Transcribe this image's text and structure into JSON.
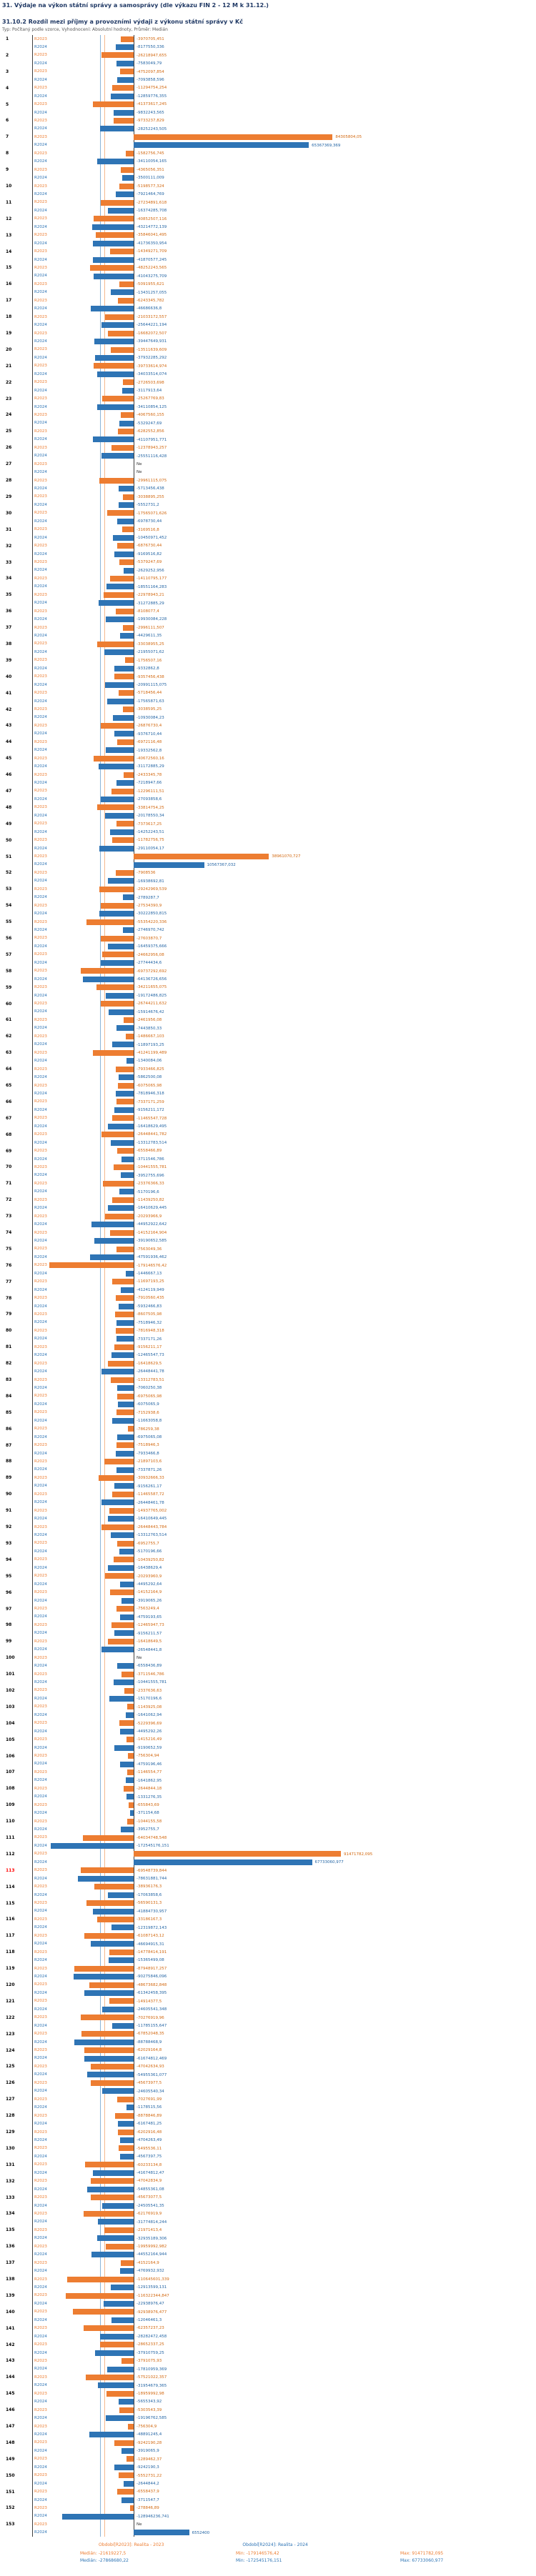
{
  "header": {
    "title": "31. Výdaje na výkon státní správy a samosprávy (dle výkazu FIN 2 - 12 M k 31.12.)",
    "subtitle": "31.10.2 Rozdíl mezi příjmy a provozními výdaji z výkonu státní správy v Kč",
    "meta": "Typ: Počítaný podle vzorce, Vyhodnocení: Absolutní hodnoty, Průměr: Medián"
  },
  "colors": {
    "r2023": "#ED7D31",
    "r2024": "#2E74B5",
    "r2023_text": "#D26911",
    "r2024_text": "#2465A4",
    "axis": "#404040",
    "no_value": "#333333",
    "highlight_row": "#FF0000"
  },
  "series_labels": {
    "r2023": "R2023",
    "r2024": "R2024"
  },
  "no_value_label": "Ne",
  "footer": {
    "legend": [
      {
        "label": "Období[R2023]: Realita - 2023",
        "series": "r2023"
      },
      {
        "label": "Období[R2024]: Realita - 2024",
        "series": "r2024"
      }
    ],
    "stats": [
      {
        "series": "r2023",
        "median": "Medián: -21619227,5",
        "min": "Min: -179146576,42",
        "max": "Max: 91471782,095"
      },
      {
        "series": "r2024",
        "median": "Medián: -27868680,22",
        "min": "Min: -172545176,151",
        "max": "Max: 67733060,977"
      }
    ]
  },
  "chart_data": {
    "type": "bar",
    "orientation": "horizontal",
    "unit": "Kč",
    "title": "31.10.2 Rozdíl mezi příjmy a provozními výdaji z výkonu státní správy v Kč",
    "legend_position": "bottom",
    "axis": {
      "min": -179146576.42,
      "max": 91471782.095,
      "zero_line": true
    },
    "medians": {
      "r2023": "-21619227,5",
      "r2024": "-27868680,22"
    },
    "highlighted_rows": [
      113
    ],
    "rows": [
      {
        "n": 1,
        "r2023": "-3970705,451",
        "r2024": "-8177550,336"
      },
      {
        "n": 2,
        "r2023": "-26218947,655",
        "r2024": "-7583049,79"
      },
      {
        "n": 3,
        "r2023": "-4752097,854",
        "r2024": "-7093858,596"
      },
      {
        "n": 4,
        "r2023": "-11294754,254",
        "r2024": "-12859776,355"
      },
      {
        "n": 5,
        "r2023": "-41373617,245",
        "r2024": "-9832243,565"
      },
      {
        "n": 6,
        "r2023": "-9733237,829",
        "r2024": "-28252243,505"
      },
      {
        "n": 7,
        "r2023": "84305804,05",
        "r2024": "65367369,369"
      },
      {
        "n": 8,
        "r2023": "-1582756,745",
        "r2024": "-34110054,165"
      },
      {
        "n": 9,
        "r2023": "-4365056,351",
        "r2024": "-3500111,009"
      },
      {
        "n": 10,
        "r2023": "-5198577,324",
        "r2024": "-7921464,769"
      },
      {
        "n": 11,
        "r2023": "-27234891,618",
        "r2024": "-16374285,708"
      },
      {
        "n": 12,
        "r2023": "-40852507,116",
        "r2024": "-43214772,139"
      },
      {
        "n": 13,
        "r2023": "-35846041,495",
        "r2024": "-41736350,954"
      },
      {
        "n": 14,
        "r2023": "-14349271,709",
        "r2024": "-41870577,245"
      },
      {
        "n": 15,
        "r2023": "-48252243,565",
        "r2024": "-41043275,709"
      },
      {
        "n": 16,
        "r2023": "-5091955,621",
        "r2024": "-13431257,055"
      },
      {
        "n": 17,
        "r2023": "-6243345,782",
        "r2024": "-46686636,8"
      },
      {
        "n": 18,
        "r2023": "-21033172,557",
        "r2024": "-25644221,194"
      },
      {
        "n": 19,
        "r2023": "-16682072,507",
        "r2024": "-39447649,931"
      },
      {
        "n": 20,
        "r2023": "-13511639,609",
        "r2024": "-37932285,292"
      },
      {
        "n": 21,
        "r2023": "-39733614,974",
        "r2024": "-34033514,074"
      },
      {
        "n": 22,
        "r2023": "-2726503,698",
        "r2024": "-3117913,64"
      },
      {
        "n": 23,
        "r2023": "-25267769,83",
        "r2024": "-34110854,125"
      },
      {
        "n": 24,
        "r2023": "-4067560,155",
        "r2024": "-5329247,69"
      },
      {
        "n": 25,
        "r2023": "-6282552,856",
        "r2024": "-41107951,771"
      },
      {
        "n": 26,
        "r2023": "-12378943,257",
        "r2024": "-25551116,428"
      },
      {
        "n": 27,
        "r2023": "Ne",
        "r2024": "Ne"
      },
      {
        "n": 28,
        "r2023": "-29961115,075",
        "r2024": "-5713456,438"
      },
      {
        "n": 29,
        "r2023": "-3038895,255",
        "r2024": "-5552731,2"
      },
      {
        "n": 30,
        "r2023": "-17565071,626",
        "r2024": "-6978730,44"
      },
      {
        "n": 31,
        "r2023": "-3169516,8",
        "r2024": "-10450971,452"
      },
      {
        "n": 32,
        "r2023": "-6876730,44",
        "r2024": "-9169516,82"
      },
      {
        "n": 33,
        "r2023": "-5379247,69",
        "r2024": "-2629252,956"
      },
      {
        "n": 34,
        "r2023": "-14110795,177",
        "r2024": "-18551164,283"
      },
      {
        "n": 35,
        "r2023": "-22978943,21",
        "r2024": "-31272885,29"
      },
      {
        "n": 36,
        "r2023": "-8108077,4",
        "r2024": "-19930084,228"
      },
      {
        "n": 37,
        "r2023": "-2996111,507",
        "r2024": "-4429611,35"
      },
      {
        "n": 38,
        "r2023": "-33038955,25",
        "r2024": "-21955071,62"
      },
      {
        "n": 39,
        "r2023": "-1756507,16",
        "r2024": "-9332862,8"
      },
      {
        "n": 40,
        "r2023": "-9357456,438",
        "r2024": "-20991115,075"
      },
      {
        "n": 41,
        "r2023": "-5718456,44",
        "r2024": "-17565871,63"
      },
      {
        "n": 42,
        "r2023": "-3038595,25",
        "r2024": "-10930084,23"
      },
      {
        "n": 43,
        "r2023": "-26876730,4",
        "r2024": "-9376710,44"
      },
      {
        "n": 44,
        "r2023": "-6972116,48",
        "r2024": "-19332562,8"
      },
      {
        "n": 45,
        "r2023": "-40672560,16",
        "r2024": "-31172885,29"
      },
      {
        "n": 46,
        "r2023": "-2433345,78",
        "r2024": "-7218947,66"
      },
      {
        "n": 47,
        "r2023": "-12296111,51",
        "r2024": "-27093858,6"
      },
      {
        "n": 48,
        "r2023": "-33814754,25",
        "r2024": "-20178550,34"
      },
      {
        "n": 49,
        "r2023": "-7373617,25",
        "r2024": "-14252243,51"
      },
      {
        "n": 50,
        "r2023": "-11782756,75",
        "r2024": "-29110054,17"
      },
      {
        "n": 51,
        "r2023": "38961070,727",
        "r2024": "10567367,032"
      },
      {
        "n": 52,
        "r2023": "-7908536",
        "r2024": "-16938692,81"
      },
      {
        "n": 53,
        "r2023": "-29242969,539",
        "r2024": "-2789287,7"
      },
      {
        "n": 54,
        "r2023": "-27534390,9",
        "r2024": "-30222850,815"
      },
      {
        "n": 55,
        "r2023": "-55354220,336",
        "r2024": "-2746970,742"
      },
      {
        "n": 56,
        "r2023": "-27603870,7",
        "r2024": "-16459375,666"
      },
      {
        "n": 57,
        "r2023": "-24662956,08",
        "r2024": "-27744434,6"
      },
      {
        "n": 58,
        "r2023": "-69737292,692",
        "r2024": "-64136726,656"
      },
      {
        "n": 59,
        "r2023": "-34211655,075",
        "r2024": "-19172486,825"
      },
      {
        "n": 60,
        "r2023": "-26744211,632",
        "r2024": "-15914676,42"
      },
      {
        "n": 61,
        "r2023": "-2461956,08",
        "r2024": "-7443850,33"
      },
      {
        "n": 62,
        "r2023": "-1486667,103",
        "r2024": "-11897193,25"
      },
      {
        "n": 63,
        "r2023": "-41241199,489",
        "r2024": "-1340084,06"
      },
      {
        "n": 64,
        "r2023": "-7933466,825",
        "r2024": "-5862500,08"
      },
      {
        "n": 65,
        "r2023": "-6075065,98",
        "r2024": "-7818946,318"
      },
      {
        "n": 66,
        "r2023": "-7337171,259",
        "r2024": "-9156211,172"
      },
      {
        "n": 67,
        "r2023": "-11465547,728",
        "r2024": "-16418629,495"
      },
      {
        "n": 68,
        "r2023": "-26448441,782",
        "r2024": "-13312783,514"
      },
      {
        "n": 69,
        "r2023": "-6558466,89",
        "r2024": "-3711546,786"
      },
      {
        "n": 70,
        "r2023": "-10441555,781",
        "r2024": "-3952755,696"
      },
      {
        "n": 71,
        "r2023": "-23376366,33",
        "r2024": "-5170196,6"
      },
      {
        "n": 72,
        "r2023": "-11439250,82",
        "r2024": "-16410629,445"
      },
      {
        "n": 73,
        "r2023": "-20293966,9",
        "r2024": "-44952922,642"
      },
      {
        "n": 74,
        "r2023": "-14152164,904",
        "r2024": "-39190652,585"
      },
      {
        "n": 75,
        "r2023": "-7563049,36",
        "r2024": "-47591936,462"
      },
      {
        "n": 76,
        "r2023": "-179146576,42",
        "r2024": "-1446667,13"
      },
      {
        "n": 77,
        "r2023": "-11697193,25",
        "r2024": "-4124119,949"
      },
      {
        "n": 78,
        "r2023": "-7910560,435",
        "r2024": "-5932466,83"
      },
      {
        "n": 79,
        "r2023": "-8607505,98",
        "r2024": "-7518946,32"
      },
      {
        "n": 80,
        "r2023": "-7816948,318",
        "r2024": "-7337171,26"
      },
      {
        "n": 81,
        "r2023": "-9156211,17",
        "r2024": "-12465547,73"
      },
      {
        "n": 82,
        "r2023": "-16418629,5",
        "r2024": "-26448441,78"
      },
      {
        "n": 83,
        "r2023": "-13312783,51",
        "r2024": "-7060250,38"
      },
      {
        "n": 84,
        "r2023": "-6975065,98",
        "r2024": "-6075065,9"
      },
      {
        "n": 85,
        "r2023": "-7152938,6",
        "r2024": "-11663058,8"
      },
      {
        "n": 86,
        "r2023": "-786259,38",
        "r2024": "-6975065,08"
      },
      {
        "n": 87,
        "r2023": "-7518946,3",
        "r2024": "-7933466,8"
      },
      {
        "n": 88,
        "r2023": "-21897103,6",
        "r2024": "-7337871,26"
      },
      {
        "n": 89,
        "r2023": "-30932666,33",
        "r2024": "-9156261,17"
      },
      {
        "n": 90,
        "r2023": "-11465587,72",
        "r2024": "-26448461,78"
      },
      {
        "n": 91,
        "r2023": "-14937765,002",
        "r2024": "-16410649,445"
      },
      {
        "n": 92,
        "r2023": "-26448443,784",
        "r2024": "-13312763,514"
      },
      {
        "n": 93,
        "r2023": "-6952755,7",
        "r2024": "-5170196,66"
      },
      {
        "n": 94,
        "r2023": "-10439250,82",
        "r2024": "-16438629,4"
      },
      {
        "n": 95,
        "r2023": "-20293960,9",
        "r2024": "-4495292,64"
      },
      {
        "n": 96,
        "r2023": "-14152164,9",
        "r2024": "-3919065,26"
      },
      {
        "n": 97,
        "r2023": "-7563249,4",
        "r2024": "-4759193,65"
      },
      {
        "n": 98,
        "r2023": "-12465947,73",
        "r2024": "-9156211,57"
      },
      {
        "n": 99,
        "r2023": "-16418649,5",
        "r2024": "-26548441,8"
      },
      {
        "n": 100,
        "r2023": "Ne",
        "r2024": "-6558436,89"
      },
      {
        "n": 101,
        "r2023": "-3711546,786",
        "r2024": "-10441555,781"
      },
      {
        "n": 102,
        "r2023": "-2337636,63",
        "r2024": "-15170196,6"
      },
      {
        "n": 103,
        "r2023": "-1143925,08",
        "r2024": "-1641062,94"
      },
      {
        "n": 104,
        "r2023": "-5229396,69",
        "r2024": "-4495292,26"
      },
      {
        "n": 105,
        "r2023": "-1415216,49",
        "r2024": "-9190652,59"
      },
      {
        "n": 106,
        "r2023": "-756304,94",
        "r2024": "-4759196,46"
      },
      {
        "n": 107,
        "r2023": "-1146554,77",
        "r2024": "-1641862,95"
      },
      {
        "n": 108,
        "r2023": "-2644844,18",
        "r2024": "-1331276,35"
      },
      {
        "n": 109,
        "r2023": "-655843,69",
        "r2024": "-371154,68"
      },
      {
        "n": 110,
        "r2023": "-1044155,58",
        "r2024": "-3952755,7"
      },
      {
        "n": 111,
        "r2023": "-64034748,548",
        "r2024": "-172545176,151"
      },
      {
        "n": 112,
        "r2023": "91471782,095",
        "r2024": "67733060,977"
      },
      {
        "n": 113,
        "r2023": "-69548739,844",
        "r2024": "-78631881,744"
      },
      {
        "n": 114,
        "r2023": "-38936176,3",
        "r2024": "-17063858,6"
      },
      {
        "n": 115,
        "r2023": "-56590131,3",
        "r2024": "-41884730,957"
      },
      {
        "n": 116,
        "r2023": "-33186167,3",
        "r2024": "-12319872,143"
      },
      {
        "n": 117,
        "r2023": "-61087143,12",
        "r2024": "-46694915,31"
      },
      {
        "n": 118,
        "r2023": "-14778414,191",
        "r2024": "-15365499,08"
      },
      {
        "n": 119,
        "r2023": "-87948917,257",
        "r2024": "-90275846,096"
      },
      {
        "n": 120,
        "r2023": "-48673682,848",
        "r2024": "-61342458,395"
      },
      {
        "n": 121,
        "r2023": "-14914377,5",
        "r2024": "-24605541,348"
      },
      {
        "n": 122,
        "r2023": "-70276919,96",
        "r2024": "-11785155,647"
      },
      {
        "n": 123,
        "r2023": "-67852048,35",
        "r2024": "-88788468,9"
      },
      {
        "n": 124,
        "r2023": "-62029164,8",
        "r2024": "-61674812,469"
      },
      {
        "n": 125,
        "r2023": "-47042634,93",
        "r2024": "-54955361,077"
      },
      {
        "n": 126,
        "r2023": "-45673977,5",
        "r2024": "-24605540,34"
      },
      {
        "n": 127,
        "r2023": "-7027691,99",
        "r2024": "-1178515,56"
      },
      {
        "n": 128,
        "r2023": "-8878846,89",
        "r2024": "-6167481,25"
      },
      {
        "n": 129,
        "r2023": "-6202916,48",
        "r2024": "-4704263,49"
      },
      {
        "n": 130,
        "r2023": "-5495536,11",
        "r2024": "-4567397,75"
      },
      {
        "n": 131,
        "r2023": "-60233134,8",
        "r2024": "-41674812,47"
      },
      {
        "n": 132,
        "r2023": "-47042834,9",
        "r2024": "-54855361,08"
      },
      {
        "n": 133,
        "r2023": "-45673077,5",
        "r2024": "-24505541,35"
      },
      {
        "n": 134,
        "r2023": "-62176919,9",
        "r2024": "-31774814,244"
      },
      {
        "n": 135,
        "r2023": "-21971413,4",
        "r2024": "-32935189,306"
      },
      {
        "n": 136,
        "r2023": "-19959992,982",
        "r2024": "-44552164,944"
      },
      {
        "n": 137,
        "r2023": "-4152164,9",
        "r2024": "-4769932,932"
      },
      {
        "n": 138,
        "r2023": "-110645601,339",
        "r2024": "-12913599,131"
      },
      {
        "n": 139,
        "r2023": "-116322344,847",
        "r2024": "-22938976,47"
      },
      {
        "n": 140,
        "r2023": "-92938976,477",
        "r2024": "-12046461,3"
      },
      {
        "n": 141,
        "r2023": "-62357237,23",
        "r2024": "-28282472,458"
      },
      {
        "n": 142,
        "r2023": "-28652337,25",
        "r2024": "-37910759,25"
      },
      {
        "n": 143,
        "r2023": "-3791075,93",
        "r2024": "-17810959,369"
      },
      {
        "n": 144,
        "r2023": "-57521022,357",
        "r2024": "-31954679,365"
      },
      {
        "n": 145,
        "r2023": "-18959992,98",
        "r2024": "-5655343,92"
      },
      {
        "n": 146,
        "r2023": "-5303543,39",
        "r2024": "-19196762,585"
      },
      {
        "n": 147,
        "r2023": "-756304,9",
        "r2024": "-48891245,4"
      },
      {
        "n": 148,
        "r2023": "-9242190,28",
        "r2024": "-3919065,9"
      },
      {
        "n": 149,
        "r2023": "-1289462,37",
        "r2024": "-9242190,3"
      },
      {
        "n": 150,
        "r2023": "-5552731,22",
        "r2024": "-2644844,2"
      },
      {
        "n": 151,
        "r2023": "-6558437,9",
        "r2024": "-3711547,7"
      },
      {
        "n": 152,
        "r2023": "-278846,89",
        "r2024": "-128946236,741"
      },
      {
        "n": 153,
        "r2023": "Ne",
        "r2024": "6552400"
      }
    ]
  }
}
